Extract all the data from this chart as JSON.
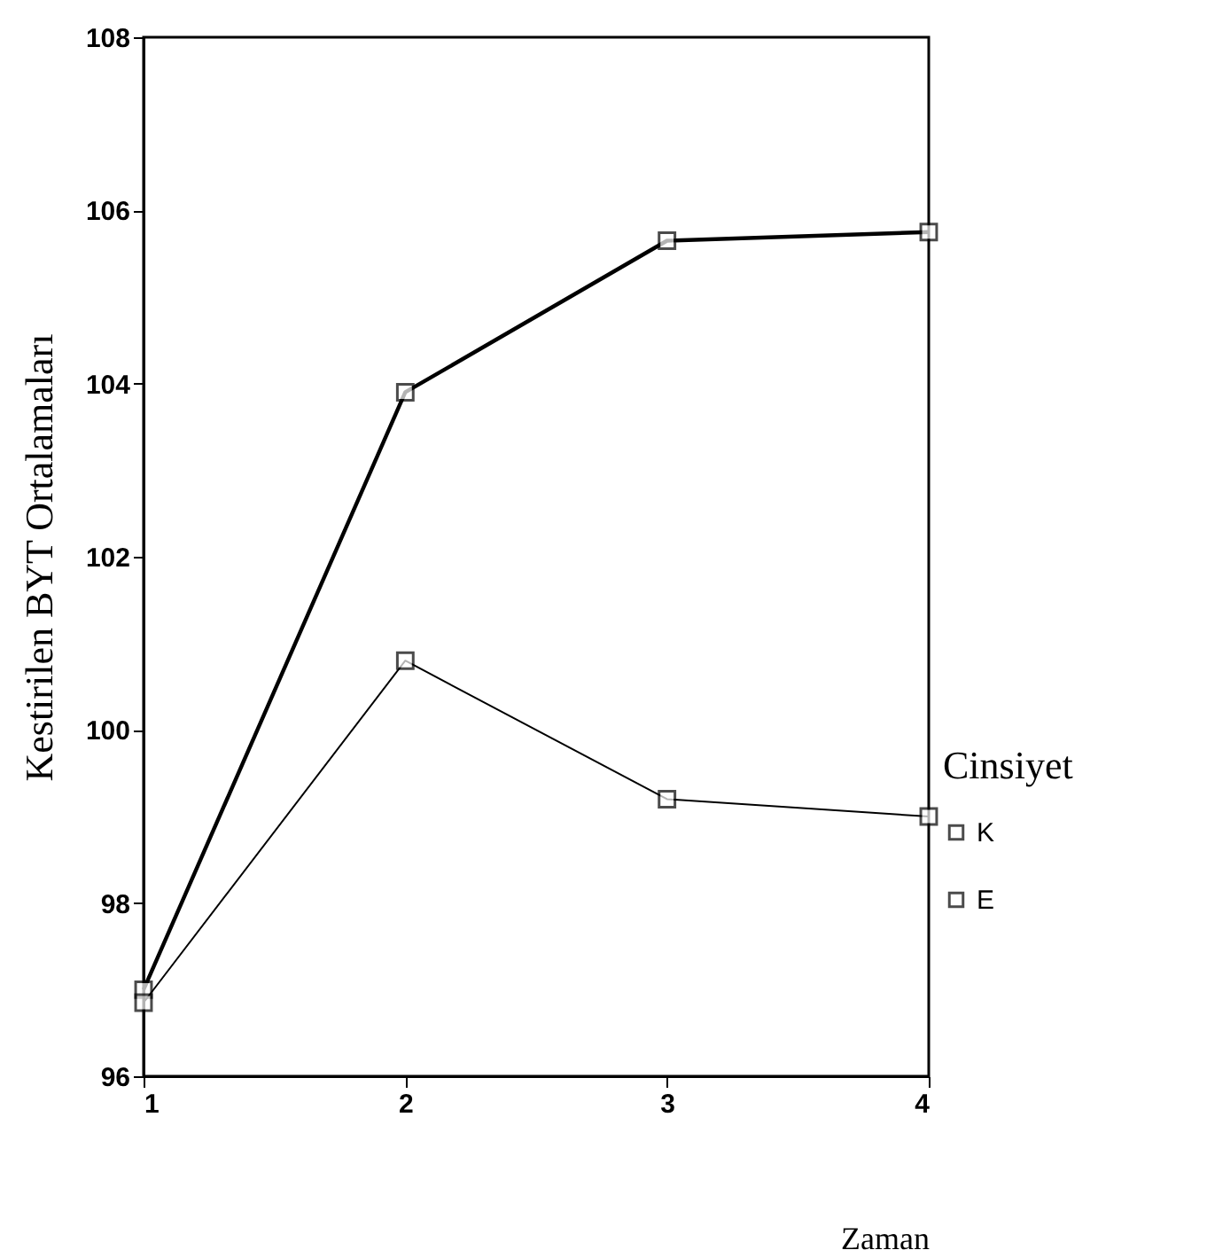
{
  "chart_data": {
    "type": "line",
    "xlabel": "Zaman",
    "ylabel": "Kestirilen BYT Ortalamaları",
    "legend_title": "Cinsiyet",
    "x": [
      1,
      2,
      3,
      4
    ],
    "xlim": [
      1,
      4
    ],
    "xticks": [
      1,
      2,
      3,
      4
    ],
    "ylim": [
      96,
      108
    ],
    "yticks": [
      96,
      98,
      100,
      102,
      104,
      106,
      108
    ],
    "series": [
      {
        "name": "K",
        "color": "#000000",
        "values": [
          97.0,
          103.9,
          105.65,
          105.75
        ]
      },
      {
        "name": "E",
        "color": "#000000",
        "values": [
          96.85,
          100.8,
          99.2,
          99.0
        ]
      }
    ],
    "marker": "square",
    "line_style": "solid",
    "legend": "bottom right",
    "grid": false
  }
}
